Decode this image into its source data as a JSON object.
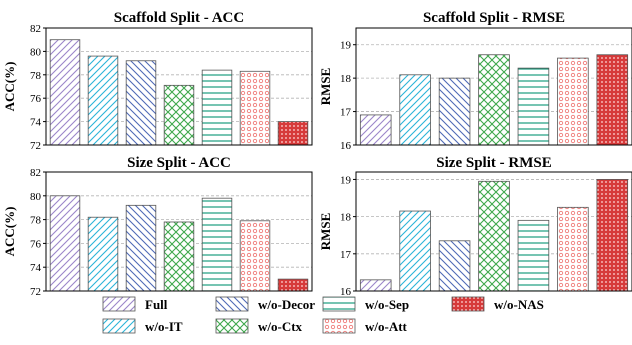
{
  "series_styles": [
    {
      "name": "Full",
      "color": "#9b86c9",
      "pattern": "diag-up"
    },
    {
      "name": "w/o-IT",
      "color": "#2ab4d8",
      "pattern": "diag-up"
    },
    {
      "name": "w/o-Decor",
      "color": "#4f6ab6",
      "pattern": "diag-down"
    },
    {
      "name": "w/o-Ctx",
      "color": "#3ea84c",
      "pattern": "crosshatch"
    },
    {
      "name": "w/o-Sep",
      "color": "#1a9c7e",
      "pattern": "horizontal"
    },
    {
      "name": "w/o-Att",
      "color": "#ef7b78",
      "pattern": "circles"
    },
    {
      "name": "w/o-NAS",
      "color": "#d63a3a",
      "pattern": "dots"
    }
  ],
  "legend": {
    "rows": [
      [
        "Full",
        "w/o-Decor",
        "w/o-Sep",
        "w/o-NAS"
      ],
      [
        "w/o-IT",
        "w/o-Ctx",
        "w/o-Att"
      ]
    ]
  },
  "chart_data": [
    {
      "type": "bar",
      "title": "Scaffold Split - ACC",
      "ylabel": "ACC(%)",
      "xlabel": "",
      "ylim": [
        72,
        82
      ],
      "yticks": [
        72,
        74,
        76,
        78,
        80,
        82
      ],
      "grid": "horizontal-dashed",
      "categories": [
        "Full",
        "w/o-IT",
        "w/o-Decor",
        "w/o-Ctx",
        "w/o-Sep",
        "w/o-Att",
        "w/o-NAS"
      ],
      "values": [
        81.0,
        79.6,
        79.2,
        77.1,
        78.4,
        78.3,
        74.0
      ]
    },
    {
      "type": "bar",
      "title": "Scaffold Split - RMSE",
      "ylabel": "RMSE",
      "xlabel": "",
      "ylim": [
        16,
        19.5
      ],
      "yticks": [
        16,
        17,
        18,
        19
      ],
      "grid": "horizontal-dashed",
      "categories": [
        "Full",
        "w/o-IT",
        "w/o-Decor",
        "w/o-Ctx",
        "w/o-Sep",
        "w/o-Att",
        "w/o-NAS"
      ],
      "values": [
        16.9,
        18.1,
        18.0,
        18.7,
        18.3,
        18.6,
        18.7
      ]
    },
    {
      "type": "bar",
      "title": "Size Split - ACC",
      "ylabel": "ACC(%)",
      "xlabel": "",
      "ylim": [
        72,
        82
      ],
      "yticks": [
        72,
        74,
        76,
        78,
        80,
        82
      ],
      "grid": "horizontal-dashed",
      "categories": [
        "Full",
        "w/o-IT",
        "w/o-Decor",
        "w/o-Ctx",
        "w/o-Sep",
        "w/o-Att",
        "w/o-NAS"
      ],
      "values": [
        80.0,
        78.2,
        79.2,
        77.8,
        79.8,
        77.9,
        73.0
      ]
    },
    {
      "type": "bar",
      "title": "Size Split - RMSE",
      "ylabel": "RMSE",
      "xlabel": "",
      "ylim": [
        16,
        19.2
      ],
      "yticks": [
        16,
        17,
        18,
        19
      ],
      "grid": "horizontal-dashed",
      "categories": [
        "Full",
        "w/o-IT",
        "w/o-Decor",
        "w/o-Ctx",
        "w/o-Sep",
        "w/o-Att",
        "w/o-NAS"
      ],
      "values": [
        16.3,
        18.15,
        17.35,
        18.95,
        17.9,
        18.25,
        19.0
      ]
    }
  ]
}
